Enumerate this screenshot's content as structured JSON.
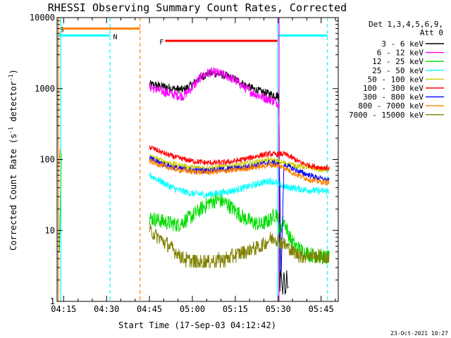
{
  "chart_data": {
    "type": "line",
    "title": "RHESSI Observing Summary Count Rates, Corrected",
    "xlabel": "Start Time (17-Sep-03 04:12:42)",
    "ylabel": "Corrected Count Rate (s⁻¹ detector⁻¹)",
    "ylabel_parts": [
      "Corrected Count Rate (s",
      "-1",
      " detector",
      "-1",
      ")"
    ],
    "xlim": [
      12.7,
      111
    ],
    "ylim": [
      1,
      10000
    ],
    "yscale": "log",
    "x_unit": "minutes after 04:00",
    "xticks": [
      {
        "value": 15,
        "label": "04:15"
      },
      {
        "value": 30,
        "label": "04:30"
      },
      {
        "value": 45,
        "label": "04:45"
      },
      {
        "value": 60,
        "label": "05:00"
      },
      {
        "value": 75,
        "label": "05:15"
      },
      {
        "value": 90,
        "label": "05:30"
      },
      {
        "value": 105,
        "label": "05:45"
      }
    ],
    "yticks": [
      {
        "value": 1,
        "label": "1"
      },
      {
        "value": 10,
        "label": "10"
      },
      {
        "value": 100,
        "label": "100"
      },
      {
        "value": 1000,
        "label": "1000"
      },
      {
        "value": 10000,
        "label": "10000"
      }
    ],
    "legend": {
      "position": "right",
      "header": [
        "Det 1,3,4,5,6,9,",
        "Att 0"
      ]
    },
    "series": [
      {
        "name": "3 - 6 keV",
        "color": "#000000",
        "x": [
          45,
          48,
          51,
          53,
          55,
          57,
          60,
          63,
          66,
          69,
          72,
          75,
          78,
          81,
          84,
          87,
          89.5,
          90.3,
          90.6,
          91,
          91.5,
          92,
          92.5,
          93,
          93.5
        ],
        "y": [
          1150,
          1100,
          1050,
          1000,
          980,
          960,
          1150,
          1450,
          1650,
          1620,
          1500,
          1350,
          1150,
          1000,
          900,
          840,
          800,
          780,
          1.5,
          3,
          1.3,
          2.8,
          1.2,
          2.5,
          1.4
        ]
      },
      {
        "name": "6 - 12 keV",
        "color": "#ff00ff",
        "x": [
          45,
          48,
          51,
          53,
          55,
          57,
          60,
          63,
          66,
          69,
          72,
          75,
          78,
          81,
          84,
          87,
          89.5,
          90.3,
          90.7
        ],
        "y": [
          1050,
          950,
          880,
          830,
          800,
          790,
          1050,
          1450,
          1700,
          1650,
          1500,
          1300,
          1050,
          880,
          770,
          700,
          640,
          600,
          6.5
        ]
      },
      {
        "name": "12 - 25 keV",
        "color": "#00dd00",
        "x": [
          13.5,
          14.2,
          45,
          48,
          51,
          55,
          60,
          63,
          66,
          69,
          72,
          75,
          78,
          81,
          84,
          87,
          89.5,
          90.5,
          92,
          94,
          96,
          99,
          102,
          105,
          108
        ],
        "y": [
          5,
          120,
          15,
          14,
          13,
          12,
          16,
          20,
          25,
          27,
          24,
          19,
          15,
          13,
          12,
          14,
          18,
          10,
          14,
          8,
          6,
          5,
          4.5,
          4.3,
          4
        ]
      },
      {
        "name": "25 - 50 keV",
        "color": "#00ffff",
        "x": [
          45,
          48,
          51,
          55,
          60,
          65,
          70,
          75,
          80,
          84,
          87,
          89,
          90.5,
          92,
          95,
          98,
          101,
          104,
          108
        ],
        "y": [
          60,
          52,
          44,
          37,
          33,
          32,
          34,
          37,
          42,
          47,
          50,
          48,
          44,
          41,
          40,
          38,
          37,
          36,
          36
        ]
      },
      {
        "name": "50 - 100 keV",
        "color": "#cccc00",
        "x": [
          45,
          48,
          51,
          55,
          60,
          65,
          70,
          75,
          80,
          84,
          87,
          89,
          90.5,
          92,
          95,
          98,
          101,
          104,
          108
        ],
        "y": [
          110,
          100,
          92,
          83,
          77,
          76,
          78,
          83,
          88,
          95,
          98,
          96,
          92,
          90,
          84,
          80,
          77,
          73,
          72
        ]
      },
      {
        "name": "100 - 300 keV",
        "color": "#ff0000",
        "x": [
          45,
          48,
          51,
          55,
          60,
          65,
          70,
          75,
          80,
          84,
          87,
          89,
          90.5,
          92,
          95,
          98,
          101,
          104,
          108
        ],
        "y": [
          150,
          133,
          118,
          105,
          95,
          90,
          90,
          95,
          105,
          115,
          120,
          118,
          120,
          120,
          105,
          90,
          82,
          78,
          75
        ]
      },
      {
        "name": "300 - 800 keV",
        "color": "#0000ff",
        "x": [
          45,
          48,
          51,
          55,
          60,
          65,
          70,
          75,
          80,
          84,
          87,
          89,
          90.3,
          90.6,
          91,
          92,
          95,
          98,
          101,
          104,
          108
        ],
        "y": [
          105,
          92,
          83,
          75,
          70,
          70,
          72,
          75,
          80,
          86,
          90,
          88,
          85,
          40,
          2,
          85,
          75,
          66,
          60,
          55,
          50
        ]
      },
      {
        "name": "800 - 7000 keV",
        "color": "#ff8000",
        "x": [
          13.3,
          13.8,
          45,
          48,
          51,
          55,
          60,
          65,
          70,
          75,
          80,
          84,
          87,
          89,
          90.5,
          92,
          95,
          98,
          101,
          104,
          108
        ],
        "y": [
          80,
          140,
          95,
          86,
          78,
          72,
          67,
          66,
          68,
          71,
          76,
          80,
          84,
          83,
          80,
          78,
          65,
          58,
          52,
          49,
          47
        ]
      },
      {
        "name": "7000 - 15000 keV",
        "color": "#808000",
        "x": [
          45,
          48,
          51,
          54,
          57,
          60,
          63,
          66,
          69,
          72,
          75,
          78,
          81,
          84,
          87,
          89,
          90.5,
          92,
          95,
          98,
          101,
          104,
          108
        ],
        "y": [
          10,
          8,
          6.5,
          5,
          4,
          3.7,
          3.6,
          3.6,
          3.8,
          4,
          4.5,
          5,
          5.5,
          6,
          7.5,
          8,
          7,
          6.5,
          5,
          4.5,
          4.4,
          4.3,
          4
        ]
      }
    ],
    "flags": [
      {
        "label": "S",
        "color": "#ff8000",
        "x_start": 13.8,
        "x_end": 41.7,
        "level": 7000
      },
      {
        "label": "N",
        "color": "#00ffff",
        "x_start": 13.0,
        "x_end": 89.9,
        "level": 5600,
        "gap": [
          31.2,
          90.0
        ]
      },
      {
        "label": "F",
        "color": "#ff0000",
        "x_start": 50.5,
        "x_end": 89.8,
        "level": 4700
      }
    ],
    "flag_n_tail": {
      "x_start": 90.0,
      "x_end": 107.2,
      "level": 5600
    },
    "vlines": [
      {
        "x": 13.2,
        "color": "#ff8000",
        "style": "solid"
      },
      {
        "x": 14.0,
        "color": "#00ffff",
        "style": "solid"
      },
      {
        "x": 31.2,
        "color": "#00ffff",
        "style": "dashed"
      },
      {
        "x": 41.7,
        "color": "#ff8000",
        "style": "dashed"
      },
      {
        "x": 89.9,
        "color": "#00ffff",
        "style": "solid"
      },
      {
        "x": 90.3,
        "color": "#ff00ff",
        "style": "solid"
      },
      {
        "x": 107.2,
        "color": "#00ffff",
        "style": "dashed"
      }
    ]
  },
  "footer": {
    "timestamp": "23-Oct-2021 10:27"
  }
}
